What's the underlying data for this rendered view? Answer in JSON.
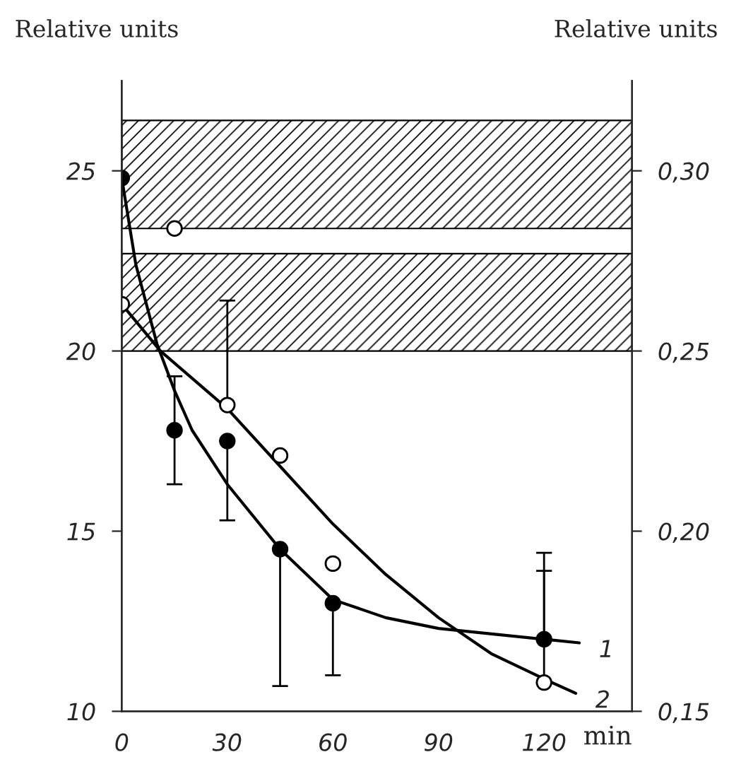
{
  "chart_data": {
    "type": "scatter",
    "xlabel": "min",
    "ylabel": "Relative units",
    "y2label": "Relative units",
    "xlim": [
      0,
      145
    ],
    "xticks": [
      0,
      30,
      60,
      90,
      120
    ],
    "ylim": [
      10,
      27.5
    ],
    "yticks": [
      10,
      15,
      20,
      25
    ],
    "y2lim": [
      0.15,
      0.325
    ],
    "y2ticks": [
      {
        "value": 0.15,
        "label": "0,15"
      },
      {
        "value": 0.2,
        "label": "0,20"
      },
      {
        "value": 0.25,
        "label": "0,25"
      },
      {
        "value": 0.3,
        "label": "0,30"
      }
    ],
    "grid": false,
    "marker": "circle",
    "bands": [
      {
        "axis": "y",
        "from": 20,
        "to": 22.7,
        "color": "#000000"
      },
      {
        "axis": "y",
        "from": 23.4,
        "to": 26.4,
        "color": "#000000"
      }
    ],
    "series": [
      {
        "color": "#000000",
        "x": [
          0,
          15,
          30,
          45,
          60,
          120
        ],
        "values": [
          24.8,
          17.8,
          17.5,
          14.5,
          13.0,
          12.0
        ],
        "errors": [
          null,
          1.5,
          [
            15.3,
            17.5
          ],
          [
            10.7,
            14.5
          ],
          [
            11.0,
            13.0
          ],
          [
            12.0,
            14.4
          ]
        ]
      },
      {
        "color": "#ffffff",
        "x": [
          0,
          15,
          30,
          45,
          60,
          120
        ],
        "values": [
          21.3,
          23.4,
          18.5,
          17.1,
          14.1,
          10.8
        ],
        "errors": [
          null,
          null,
          [
            18.5,
            21.4
          ],
          null,
          null,
          [
            10.8,
            13.9
          ]
        ]
      },
      {
        "type": "line",
        "marker": "none",
        "name": "1",
        "color": "#000000",
        "x": [
          0,
          4,
          10,
          15,
          20,
          30,
          45,
          60,
          75,
          90,
          120,
          130
        ],
        "values": [
          24.8,
          22.4,
          20.2,
          18.9,
          17.8,
          16.3,
          14.5,
          13.1,
          12.6,
          12.3,
          12.0,
          11.9
        ]
      },
      {
        "type": "line",
        "marker": "none",
        "name": "2",
        "color": "#000000",
        "x": [
          0,
          11,
          30,
          45,
          60,
          75,
          90,
          105,
          120,
          129
        ],
        "values": [
          21.3,
          20.0,
          18.4,
          16.8,
          15.2,
          13.8,
          12.6,
          11.6,
          10.9,
          10.5
        ]
      }
    ]
  }
}
